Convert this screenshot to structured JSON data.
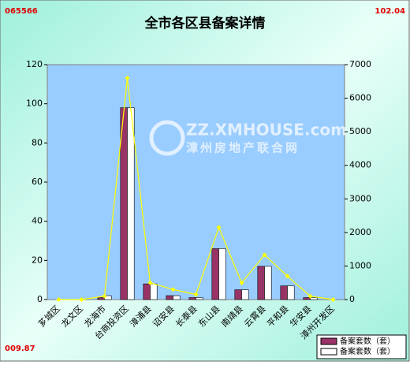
{
  "chart_data": {
    "type": "bar",
    "title": "全市各区县备案详情",
    "annotations": [
      "065566",
      "102.04",
      "009.87"
    ],
    "watermark": [
      "ZZ.XMHOUSE.com",
      "漳州房地产联合网"
    ],
    "categories": [
      "芗城区",
      "龙文区",
      "龙海市",
      "台商投资区",
      "漳浦县",
      "诏安县",
      "长泰县",
      "东山县",
      "南靖县",
      "云霄县",
      "平和县",
      "华安县",
      "漳州开发区"
    ],
    "series": [
      {
        "name": "备案套数（套）",
        "color": "#993366",
        "values": [
          0,
          0,
          1,
          98,
          8,
          2,
          1,
          26,
          5,
          17,
          7,
          1,
          0
        ]
      },
      {
        "name": "备案套数（套）",
        "color": "#ffffff",
        "values": [
          0,
          0,
          2,
          98,
          8,
          2,
          1,
          26,
          5,
          17,
          7,
          1,
          0
        ]
      },
      {
        "type": "line",
        "axis": "y2",
        "color": "#ffff00",
        "values": [
          0,
          0,
          100,
          6600,
          500,
          300,
          150,
          2150,
          500,
          1330,
          700,
          100,
          0
        ]
      }
    ],
    "ylim": [
      0,
      120
    ],
    "yticks": [
      0,
      20,
      40,
      60,
      80,
      100,
      120
    ],
    "y2lim": [
      0,
      7000
    ],
    "y2ticks": [
      0,
      1000,
      2000,
      3000,
      4000,
      5000,
      6000,
      7000
    ],
    "plot_color": "#99ccff"
  }
}
